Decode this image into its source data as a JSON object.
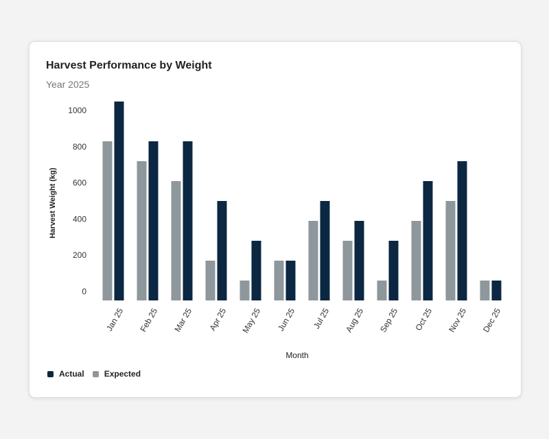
{
  "card": {
    "title": "Harvest Performance by Weight",
    "subtitle": "Year 2025"
  },
  "colors": {
    "actual": "#0b2742",
    "expected": "#8e979c",
    "tick_text": "#333333"
  },
  "legend": {
    "actual_label": "Actual",
    "expected_label": "Expected"
  },
  "chart_data": {
    "type": "bar",
    "title": "Harvest Performance by Weight",
    "subtitle": "Year 2025",
    "xlabel": "Month",
    "ylabel": "Harvest Weight (kg)",
    "categories": [
      "Jan 25",
      "Feb 25",
      "Mar 25",
      "Apr 25",
      "May 25",
      "Jun 25",
      "Jul 25",
      "Aug 25",
      "Sep 25",
      "Oct 25",
      "Nov 25",
      "Dec 25"
    ],
    "series": [
      {
        "name": "Expected",
        "values": [
          830,
          720,
          610,
          170,
          60,
          170,
          390,
          280,
          60,
          390,
          500,
          60
        ]
      },
      {
        "name": "Actual",
        "values": [
          1050,
          830,
          830,
          500,
          280,
          170,
          500,
          390,
          280,
          610,
          720,
          60
        ]
      }
    ],
    "yticks": [
      0,
      200,
      400,
      600,
      800,
      1000
    ],
    "ylim": [
      -50,
      1050
    ],
    "grid": false,
    "legend_position": "bottom-left"
  }
}
